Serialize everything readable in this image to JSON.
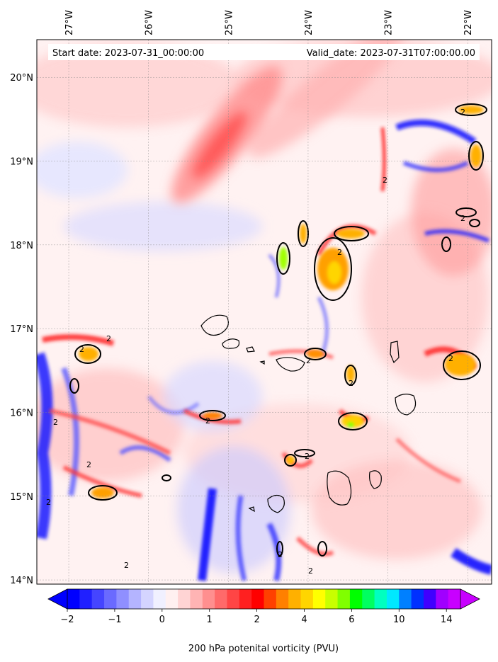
{
  "map": {
    "start_date": "Start date: 2023-07-31_00:00:00",
    "valid_date": "Valid_date: 2023-07-31T07:00:00.00",
    "lon_labels": [
      "27°W",
      "26°W",
      "25°W",
      "24°W",
      "23°W",
      "22°W"
    ],
    "lat_labels": [
      "20°N",
      "19°N",
      "18°N",
      "17°N",
      "16°N",
      "15°N",
      "14°N"
    ],
    "lon_values": [
      -27,
      -26,
      -25,
      -24,
      -23,
      -22
    ],
    "lat_values": [
      20,
      19,
      18,
      17,
      16,
      15,
      14
    ],
    "lon_range": [
      -27.4,
      -21.7
    ],
    "lat_range": [
      13.95,
      20.45
    ],
    "contour_label": "2",
    "gridlines": true
  },
  "colorbar": {
    "label": "200 hPa potenital vorticity (PVU)",
    "tick_labels": [
      "−2",
      "−1",
      "0",
      "1",
      "2",
      "4",
      "6",
      "10",
      "14"
    ],
    "colors": [
      "#0000ff",
      "#2020ff",
      "#4545ff",
      "#6a6aff",
      "#8f8fff",
      "#b4b4ff",
      "#d4d4ff",
      "#f0f0ff",
      "#fff0f0",
      "#ffd4d4",
      "#ffb4b4",
      "#ff8f8f",
      "#ff6a6a",
      "#ff4545",
      "#ff2020",
      "#ff0000",
      "#ff4000",
      "#ff8000",
      "#ffb000",
      "#ffd500",
      "#ffff00",
      "#c8ff00",
      "#80ff00",
      "#00ff00",
      "#00ff60",
      "#00ffc0",
      "#00e8ff",
      "#0080ff",
      "#0030ff",
      "#4000ff",
      "#a000ff",
      "#c800ff"
    ],
    "extend": "both"
  }
}
